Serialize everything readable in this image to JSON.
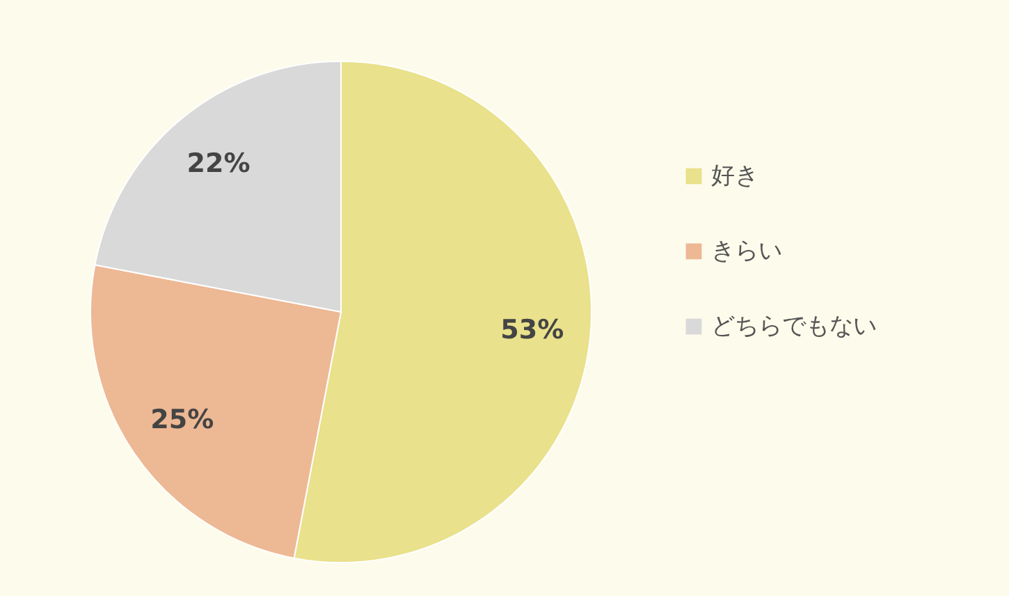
{
  "chart_data": {
    "type": "pie",
    "categories": [
      "好き",
      "きらい",
      "どちらでもない"
    ],
    "values": [
      53,
      25,
      22
    ],
    "colors": [
      "#e9e18b",
      "#edb894",
      "#d9d9d9"
    ],
    "value_labels": [
      "53%",
      "25%",
      "22%"
    ],
    "legend": "right"
  }
}
